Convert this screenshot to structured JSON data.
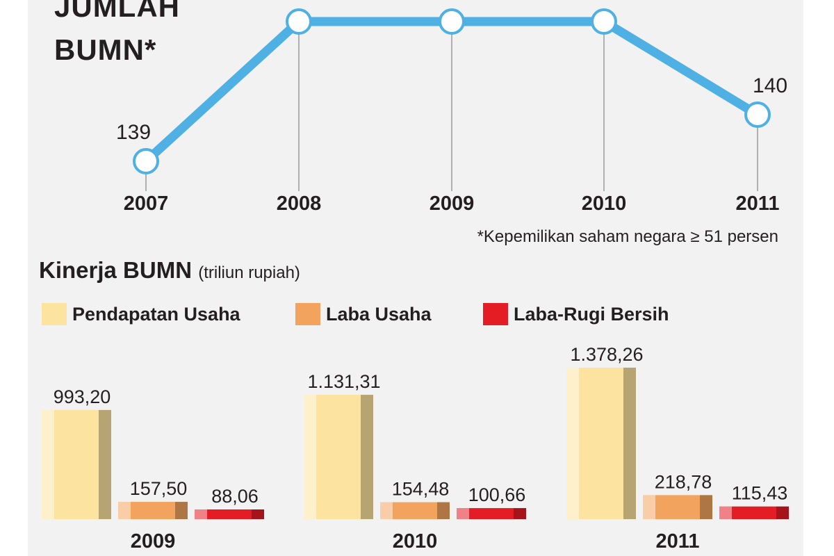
{
  "title": {
    "line1": "JUMLAH",
    "line2": "BUMN*"
  },
  "footnote": "*Kepemilikan saham negara ≥ 51 persen",
  "section_title": "Kinerja BUMN",
  "section_unit": "(triliun rupiah)",
  "colors": {
    "line": "#4fb0e3",
    "panel": "#f2f2f2",
    "pendapatan": "#fce3a0",
    "laba_usaha": "#f2a45f",
    "laba_rugi": "#e41d25"
  },
  "chart_data": [
    {
      "type": "line",
      "title": "JUMLAH BUMN*",
      "x": [
        "2007",
        "2008",
        "2009",
        "2010",
        "2011"
      ],
      "point_labels": [
        "139",
        "",
        "",
        "",
        "140"
      ],
      "series": [
        {
          "values": [
            139,
            142,
            142,
            142,
            140
          ]
        }
      ],
      "grid": false
    },
    {
      "type": "bar",
      "title": "Kinerja BUMN",
      "subtitle": "(triliun rupiah)",
      "categories": [
        "2009",
        "2010",
        "2011"
      ],
      "series": [
        {
          "name": "Pendapatan Usaha",
          "values": [
            993.2,
            1131.31,
            1378.26
          ],
          "labels": [
            "993,20",
            "1.131,31",
            "1.378,26"
          ]
        },
        {
          "name": "Laba Usaha",
          "values": [
            157.5,
            154.48,
            218.78
          ],
          "labels": [
            "157,50",
            "154,48",
            "218,78"
          ]
        },
        {
          "name": "Laba-Rugi Bersih",
          "values": [
            88.06,
            100.66,
            115.43
          ],
          "labels": [
            "88,06",
            "100,66",
            "115,43"
          ]
        }
      ],
      "legend": "top"
    }
  ]
}
